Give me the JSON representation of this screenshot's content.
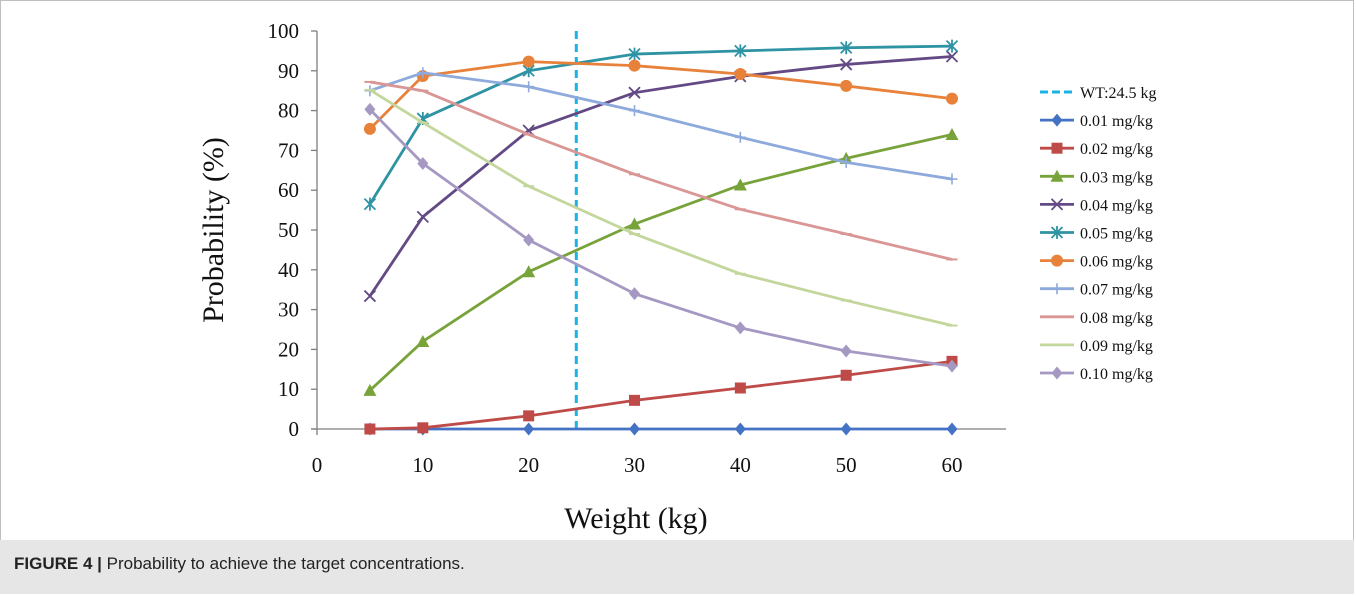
{
  "caption": {
    "label": "FIGURE 4 |",
    "text": " Probability to achieve the target concentrations."
  },
  "chart_data": {
    "type": "line",
    "title": "",
    "xlabel": "Weight (kg)",
    "ylabel": "Probability (%)",
    "xlim": [
      0,
      60
    ],
    "ylim": [
      0,
      100
    ],
    "x_ticks": [
      "0",
      "10",
      "20",
      "30",
      "40",
      "50",
      "60"
    ],
    "y_ticks": [
      "0",
      "10",
      "20",
      "30",
      "40",
      "50",
      "60",
      "70",
      "80",
      "90",
      "100"
    ],
    "grid": false,
    "legend_position": "right",
    "x": [
      5,
      10,
      20,
      30,
      40,
      50,
      60
    ],
    "reference_line": {
      "name": "WT:24.5 kg",
      "x": 24.5,
      "color": "#1ab3e6",
      "style": "dashed"
    },
    "series": [
      {
        "name": "0.01 mg/kg",
        "color": "#4472c4",
        "marker": "diamond",
        "values": [
          0,
          0,
          0,
          0,
          0,
          0,
          0
        ]
      },
      {
        "name": "0.02 mg/kg",
        "color": "#be4b48",
        "marker": "square",
        "values": [
          0,
          0.3,
          3.3,
          7.2,
          10.3,
          13.5,
          17
        ]
      },
      {
        "name": "0.03 mg/kg",
        "color": "#78a33a",
        "marker": "triangle",
        "values": [
          9.7,
          22,
          39.5,
          51.5,
          61.3,
          68,
          74
        ]
      },
      {
        "name": "0.04 mg/kg",
        "color": "#634a85",
        "marker": "x",
        "values": [
          33.4,
          53.3,
          75,
          84.5,
          88.6,
          91.6,
          93.6
        ]
      },
      {
        "name": "0.05 mg/kg",
        "color": "#2e93a3",
        "marker": "star",
        "values": [
          56.5,
          78,
          90,
          94.2,
          95,
          95.8,
          96.2
        ]
      },
      {
        "name": "0.06 mg/kg",
        "color": "#e8813a",
        "marker": "circle",
        "values": [
          75.4,
          88.7,
          92.3,
          91.3,
          89.2,
          86.2,
          83
        ]
      },
      {
        "name": "0.07 mg/kg",
        "color": "#8ea9db",
        "marker": "plus",
        "values": [
          85,
          89.5,
          86,
          80,
          73.3,
          67,
          62.8
        ]
      },
      {
        "name": "0.08 mg/kg",
        "color": "#d99694",
        "marker": "dash",
        "values": [
          87.2,
          85,
          74,
          64,
          55.2,
          49,
          42.6
        ]
      },
      {
        "name": "0.09 mg/kg",
        "color": "#c3d69b",
        "marker": "dash",
        "values": [
          85.2,
          77,
          61,
          49,
          39,
          32.3,
          26
        ]
      },
      {
        "name": "0.10 mg/kg",
        "color": "#a598c2",
        "marker": "diamond",
        "values": [
          80.3,
          66.7,
          47.5,
          34,
          25.4,
          19.6,
          15.8
        ]
      }
    ]
  }
}
